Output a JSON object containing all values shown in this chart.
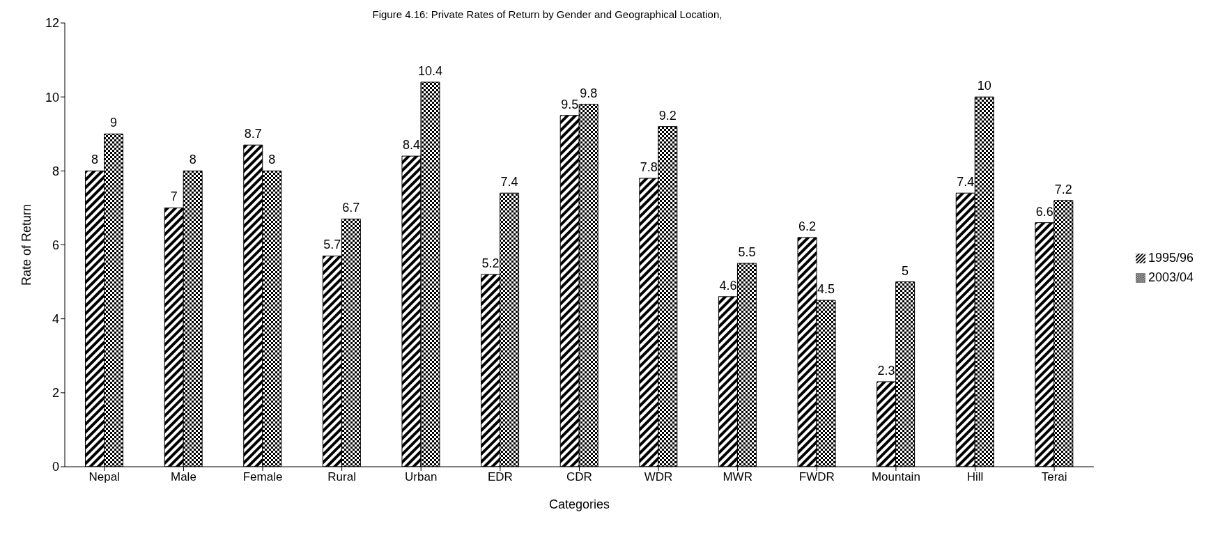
{
  "chart_data": {
    "type": "bar",
    "title": "Figure 4.16: Private Rates of Return by Gender and Geographical Location,",
    "xlabel": "Categories",
    "ylabel": "Rate of Return",
    "categories": [
      "Nepal",
      "Male",
      "Female",
      "Rural",
      "Urban",
      "EDR",
      "CDR",
      "WDR",
      "MWR",
      "FWDR",
      "Mountain",
      "Hill",
      "Terai"
    ],
    "series": [
      {
        "name": "1995/96",
        "color": "#000000",
        "values": [
          8,
          7,
          8.7,
          5.7,
          8.4,
          5.2,
          9.5,
          7.8,
          4.6,
          6.2,
          2.3,
          7.4,
          6.6
        ]
      },
      {
        "name": "2003/04",
        "color": "#000000",
        "values": [
          9,
          8,
          8,
          6.7,
          10.4,
          7.4,
          9.8,
          9.2,
          5.5,
          4.5,
          5,
          10,
          7.2
        ]
      }
    ],
    "ylim": [
      0,
      12
    ],
    "yticks": [
      0,
      2,
      4,
      6,
      8,
      10,
      12
    ],
    "grid": false,
    "legend": "right",
    "data_labels": true
  }
}
